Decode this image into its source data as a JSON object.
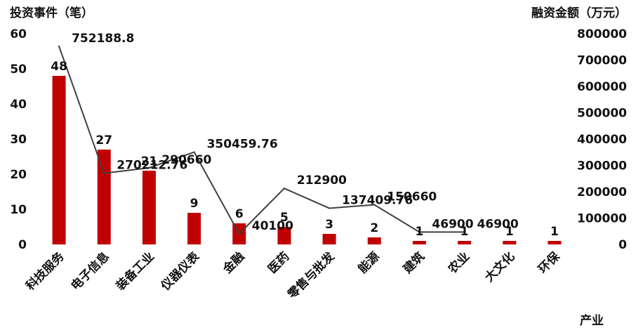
{
  "chart_data": {
    "type": "bar",
    "categories": [
      "科技服务",
      "电子信息",
      "装备工业",
      "仪器仪表",
      "金融",
      "医药",
      "零售与批发",
      "能源",
      "建筑",
      "农业",
      "大文化",
      "环保"
    ],
    "series": [
      {
        "axis": "left",
        "mark": "bar",
        "values": [
          48,
          27,
          21,
          9,
          6,
          5,
          3,
          2,
          1,
          1,
          1,
          1
        ],
        "labels": [
          "48",
          "27",
          "21",
          "9",
          "6",
          "5",
          "3",
          "2",
          "1",
          "1",
          "1",
          "1"
        ]
      },
      {
        "axis": "right",
        "mark": "line",
        "values": [
          752188.8,
          270212.76,
          290660,
          350459.76,
          40100,
          212900,
          137409.76,
          150660,
          46900,
          46900,
          null,
          null
        ],
        "labels": [
          "752188.8",
          "270212.76",
          "290660",
          "350459.76",
          "40100",
          "212900",
          "137409.76",
          "150660",
          "46900",
          "46900",
          "",
          ""
        ]
      }
    ],
    "ylabel": "投资事件（笔）",
    "y2label": "融资金额（万元）",
    "xlabel": "产业",
    "ylim": [
      0,
      60
    ],
    "yticks": [
      "0",
      "10",
      "20",
      "30",
      "40",
      "50",
      "60"
    ],
    "y2lim": [
      0,
      800000
    ],
    "y2ticks": [
      "0",
      "100000",
      "200000",
      "300000",
      "400000",
      "500000",
      "600000",
      "700000",
      "800000"
    ],
    "grid": false,
    "legend": "none",
    "colors": {
      "bar": "#c00000",
      "line": "#404040",
      "text": "#111111"
    }
  }
}
